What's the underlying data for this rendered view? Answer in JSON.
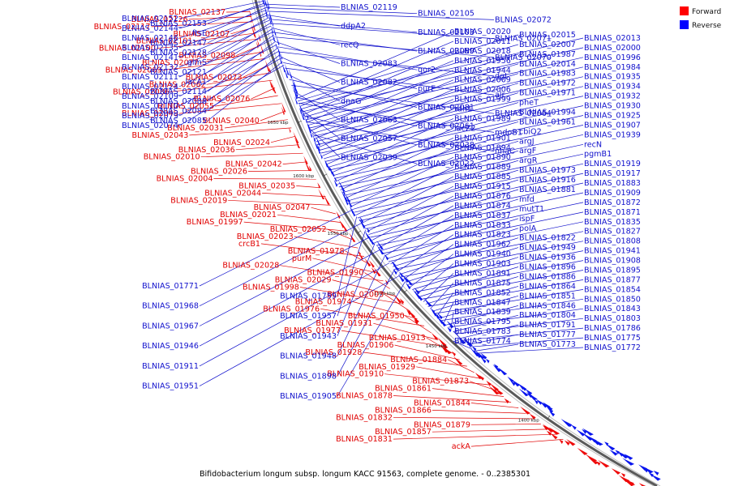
{
  "caption": "Bifidobacterium longum subsp. longum KACC 91563, complete genome. - 0..2385301",
  "legend": [
    {
      "label": "Forward",
      "color": "#ff0000"
    },
    {
      "label": "Reverse",
      "color": "#0000ff"
    }
  ],
  "colors": {
    "forward": "#e00000",
    "reverse": "#1111cc",
    "backbone": "#707070"
  },
  "ticks": [
    "1650 kbp",
    "1600 kbp",
    "1550 kbp",
    "1500 kbp",
    "1450 kbp",
    "1400 kbp"
  ],
  "forward_labels": [
    "BLNIAS_02137",
    "BLNIAS_02126",
    "BLNIAS_02117",
    "BLNIAS_02107",
    "BLNIAS_02101",
    "BLNIAS_02100",
    "BLNIAS_02098",
    "BLNIAS_02077",
    "BLNIAS_02069",
    "BLNIAS_02073",
    "BLNIAS_02062",
    "BLNIAS_02086",
    "BLNIAS_02076",
    "BLNIAS_02055",
    "BLNIAS_02049",
    "BLNIAS_02040",
    "BLNIAS_02031",
    "BLNIAS_02043",
    "BLNIAS_02024",
    "BLNIAS_02036",
    "BLNIAS_02010",
    "BLNIAS_02042",
    "BLNIAS_02026",
    "BLNIAS_02004",
    "BLNIAS_02035",
    "BLNIAS_02044",
    "BLNIAS_02019",
    "BLNIAS_02047",
    "BLNIAS_02021",
    "BLNIAS_01997",
    "BLNIAS_02052",
    "BLNIAS_02023",
    "crcB1",
    "BLNIAS_01978",
    "purM",
    "BLNIAS_02028",
    "BLNIAS_01990",
    "BLNIAS_02029",
    "BLNIAS_01998",
    "BLNIAS_02003",
    "BLNIAS_01974",
    "BLNIAS_01976",
    "BLNIAS_01950",
    "BLNIAS_01931",
    "BLNIAS_01977",
    "BLNIAS_01913",
    "BLNIAS_01906",
    "BLNIAS_01928",
    "BLNIAS_01884",
    "BLNIAS_01929",
    "BLNIAS_01910",
    "BLNIAS_01873",
    "BLNIAS_01861",
    "BLNIAS_01878",
    "BLNIAS_01844",
    "BLNIAS_01866",
    "BLNIAS_01832",
    "BLNIAS_01879",
    "BLNIAS_01857",
    "BLNIAS_01831",
    "ackA"
  ],
  "reverse_labels": [
    "BLNIAS_02152",
    "BLNIAS_02153",
    "BLNIAS_02144",
    "ftsE",
    "BLNIAS_02146",
    "BLNIAS_02147",
    "BLNIAS_02135",
    "BLNIAS_02128",
    "BLNIAS_02141",
    "glmS",
    "BLNIAS_02132",
    "BLNIAS_02121",
    "BLNIAS_02111",
    "lacA1",
    "BLNIAS_02124",
    "BLNIAS_02114",
    "BLNIAS_02109",
    "BLNIAS_02088",
    "BLNIAS_02110",
    "BLNIAS_02084",
    "BLNIAS_02079",
    "BLNIAS_02085",
    "BLNIAS_02074",
    "BLNIAS_02119",
    "BLNIAS_02105",
    "BLNIAS_02072",
    "ddpA2",
    "BLNIAS_02103",
    "BLNIAS_02071",
    "recQ",
    "BLNIAS_02089",
    "BLNIAS_02070",
    "BLNIAS_02083",
    "qor2",
    "dgt",
    "BLNIAS_02082",
    "purE",
    "alr",
    "dnaG",
    "BLNIAS_02081",
    "BLNIAS_02064",
    "BLNIAS_02063",
    "BLNIAS_02061",
    "mdoB1",
    "BLNIAS_02057",
    "BLNIAS_02038",
    "nhaC",
    "BLNIAS_02039",
    "BLNIAS_02022",
    "BLNIAS_02020",
    "BLNIAS_02015",
    "BLNIAS_02013",
    "BLNIAS_02011",
    "BLNIAS_02007",
    "BLNIAS_02000",
    "BLNIAS_02018",
    "BLNIAS_01987",
    "BLNIAS_01996",
    "BLNIAS_01956",
    "BLNIAS_02014",
    "BLNIAS_01984",
    "BLNIAS_01944",
    "BLNIAS_01983",
    "BLNIAS_01935",
    "BLNIAS_02009",
    "BLNIAS_01972",
    "BLNIAS_01934",
    "BLNIAS_02006",
    "BLNIAS_01971",
    "BLNIAS_01932",
    "BLNIAS_01999",
    "pheT",
    "BLNIAS_01930",
    "tdh1",
    "BLNIAS_01994",
    "BLNIAS_01925",
    "BLNIAS_01989",
    "BLNIAS_01961",
    "BLNIAS_01907",
    "lacZ2",
    "cbiQ2",
    "BLNIAS_01939",
    "BLNIAS_01901",
    "argJ",
    "recN",
    "BLNIAS_01894",
    "argF",
    "pgmB1",
    "BLNIAS_01890",
    "argR",
    "BLNIAS_01919",
    "BLNIAS_01889",
    "BLNIAS_01973",
    "BLNIAS_01917",
    "BLNIAS_01885",
    "BLNIAS_01916",
    "BLNIAS_01883",
    "BLNIAS_01915",
    "BLNIAS_01881",
    "BLNIAS_01909",
    "BLNIAS_01876",
    "mfd",
    "BLNIAS_01872",
    "BLNIAS_01874",
    "mutT1",
    "BLNIAS_01871",
    "BLNIAS_01837",
    "ispF",
    "BLNIAS_01835",
    "BLNIAS_01833",
    "polA",
    "BLNIAS_01827",
    "BLNIAS_01823",
    "BLNIAS_01822",
    "BLNIAS_01808",
    "BLNIAS_01962",
    "BLNIAS_01949",
    "BLNIAS_01941",
    "BLNIAS_01940",
    "BLNIAS_01936",
    "BLNIAS_01908",
    "BLNIAS_01903",
    "BLNIAS_01896",
    "BLNIAS_01895",
    "BLNIAS_01891",
    "BLNIAS_01886",
    "BLNIAS_01877",
    "BLNIAS_01875",
    "BLNIAS_01864",
    "BLNIAS_01854",
    "BLNIAS_01852",
    "BLNIAS_01851",
    "BLNIAS_01850",
    "BLNIAS_01847",
    "BLNIAS_01846",
    "BLNIAS_01843",
    "BLNIAS_01839",
    "BLNIAS_01804",
    "BLNIAS_01803",
    "BLNIAS_01795",
    "BLNIAS_01791",
    "BLNIAS_01786",
    "BLNIAS_01783",
    "BLNIAS_01777",
    "BLNIAS_01775",
    "BLNIAS_01774",
    "BLNIAS_01773",
    "BLNIAS_01772",
    "BLNIAS_01771",
    "BLNIAS_01759",
    "BLNIAS_01968",
    "BLNIAS_01957",
    "BLNIAS_01967",
    "BLNIAS_01943",
    "BLNIAS_01946",
    "BLNIAS_01948",
    "BLNIAS_01911",
    "BLNIAS_01898",
    "BLNIAS_01951",
    "BLNIAS_01905"
  ]
}
